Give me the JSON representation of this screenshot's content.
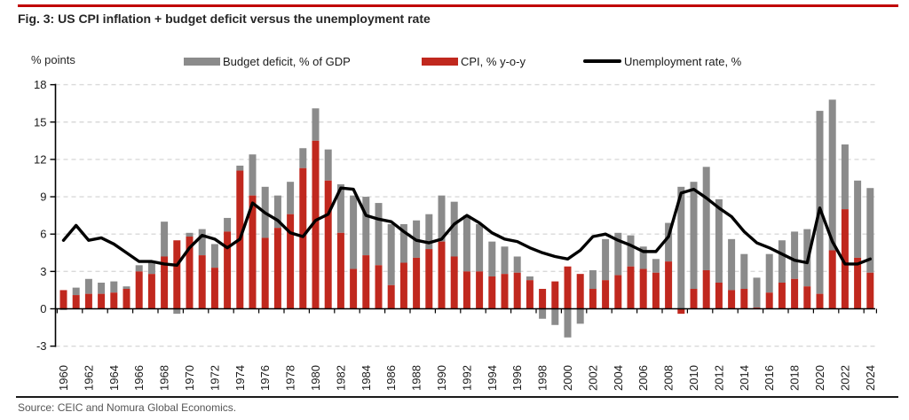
{
  "header": {
    "title": "Fig. 3: US CPI inflation + budget deficit versus the unemployment rate"
  },
  "axis_unit_label": "% points",
  "legend": [
    {
      "label": "Budget deficit, % of GDP",
      "color": "#8b8b8b",
      "type": "bar"
    },
    {
      "label": "CPI, % y-o-y",
      "color": "#c0281e",
      "type": "bar"
    },
    {
      "label": "Unemployment rate, %",
      "color": "#000000",
      "type": "line"
    }
  ],
  "footer": {
    "source": "Source: CEIC and Nomura Global Economics."
  },
  "colors": {
    "top_rule": "#c00000",
    "gridline": "#d9d9d9",
    "axis": "#000000",
    "deficit_bar": "#8b8b8b",
    "cpi_bar": "#c0281e",
    "unemployment_line": "#000000"
  },
  "chart_data": {
    "type": "bar",
    "subtype": "stacked bars with line overlay",
    "title": "Fig. 3: US CPI inflation + budget deficit versus the unemployment rate",
    "xlabel": "",
    "ylabel": "% points",
    "ylim": [
      -3,
      18
    ],
    "yticks": [
      18,
      15,
      12,
      9,
      6,
      3,
      0,
      -3
    ],
    "grid": "dashed horizontal gridlines, none at zero",
    "legend_position": "top",
    "x": [
      1960,
      1961,
      1962,
      1963,
      1964,
      1965,
      1966,
      1967,
      1968,
      1969,
      1970,
      1971,
      1972,
      1973,
      1974,
      1975,
      1976,
      1977,
      1978,
      1979,
      1980,
      1981,
      1982,
      1983,
      1984,
      1985,
      1986,
      1987,
      1988,
      1989,
      1990,
      1991,
      1992,
      1993,
      1994,
      1995,
      1996,
      1997,
      1998,
      1999,
      2000,
      2001,
      2002,
      2003,
      2004,
      2005,
      2006,
      2007,
      2008,
      2009,
      2010,
      2011,
      2012,
      2013,
      2014,
      2015,
      2016,
      2017,
      2018,
      2019,
      2020,
      2021,
      2022,
      2023,
      2024
    ],
    "xtick_years": [
      1960,
      1962,
      1964,
      1966,
      1968,
      1970,
      1972,
      1974,
      1976,
      1978,
      1980,
      1982,
      1984,
      1986,
      1988,
      1990,
      1992,
      1994,
      1996,
      1998,
      2000,
      2002,
      2004,
      2006,
      2008,
      2010,
      2012,
      2014,
      2016,
      2018,
      2020,
      2022,
      2024
    ],
    "series": [
      {
        "name": "CPI, % y-o-y",
        "type": "bar",
        "stack": true,
        "color": "#c0281e",
        "values": [
          1.5,
          1.1,
          1.2,
          1.2,
          1.3,
          1.6,
          3.0,
          2.8,
          4.2,
          5.5,
          5.8,
          4.3,
          3.3,
          6.2,
          11.1,
          9.1,
          5.7,
          6.5,
          7.6,
          11.3,
          13.5,
          10.3,
          6.1,
          3.2,
          4.3,
          3.5,
          1.9,
          3.7,
          4.1,
          4.8,
          5.4,
          4.2,
          3.0,
          3.0,
          2.6,
          2.8,
          2.9,
          2.3,
          1.6,
          2.2,
          3.4,
          2.8,
          1.6,
          2.3,
          2.7,
          3.4,
          3.2,
          2.9,
          3.8,
          -0.4,
          1.6,
          3.1,
          2.1,
          1.5,
          1.6,
          0.1,
          1.3,
          2.1,
          2.4,
          1.8,
          1.2,
          4.7,
          8.0,
          4.1,
          2.9
        ]
      },
      {
        "name": "Budget deficit, % of GDP",
        "type": "bar",
        "stack": true,
        "color": "#8b8b8b",
        "values": [
          -0.1,
          0.6,
          1.2,
          0.9,
          0.9,
          0.2,
          0.5,
          1.0,
          2.8,
          -0.4,
          0.3,
          2.1,
          1.9,
          1.1,
          0.4,
          3.3,
          4.1,
          2.6,
          2.6,
          1.6,
          2.6,
          2.5,
          3.9,
          5.9,
          4.7,
          5.0,
          4.9,
          3.1,
          3.0,
          2.8,
          3.7,
          4.4,
          4.5,
          3.8,
          2.8,
          2.2,
          1.3,
          0.3,
          -0.8,
          -1.3,
          -2.3,
          -1.2,
          1.5,
          3.3,
          3.4,
          2.5,
          1.8,
          1.1,
          3.1,
          9.8,
          8.6,
          8.3,
          6.7,
          4.1,
          2.8,
          2.4,
          3.1,
          3.4,
          3.8,
          4.6,
          14.7,
          12.1,
          5.2,
          6.2,
          6.8
        ]
      },
      {
        "name": "Unemployment rate, %",
        "type": "line",
        "color": "#000000",
        "values": [
          5.5,
          6.7,
          5.5,
          5.7,
          5.2,
          4.5,
          3.8,
          3.8,
          3.6,
          3.5,
          4.9,
          5.9,
          5.6,
          4.9,
          5.6,
          8.5,
          7.7,
          7.1,
          6.1,
          5.8,
          7.1,
          7.6,
          9.7,
          9.6,
          7.5,
          7.2,
          7.0,
          6.2,
          5.5,
          5.3,
          5.6,
          6.8,
          7.5,
          6.9,
          6.1,
          5.6,
          5.4,
          4.9,
          4.5,
          4.2,
          4.0,
          4.7,
          5.8,
          6.0,
          5.5,
          5.1,
          4.6,
          4.6,
          5.8,
          9.3,
          9.6,
          8.9,
          8.1,
          7.4,
          6.2,
          5.3,
          4.9,
          4.4,
          3.9,
          3.7,
          8.1,
          5.4,
          3.6,
          3.6,
          4.0
        ]
      }
    ]
  }
}
